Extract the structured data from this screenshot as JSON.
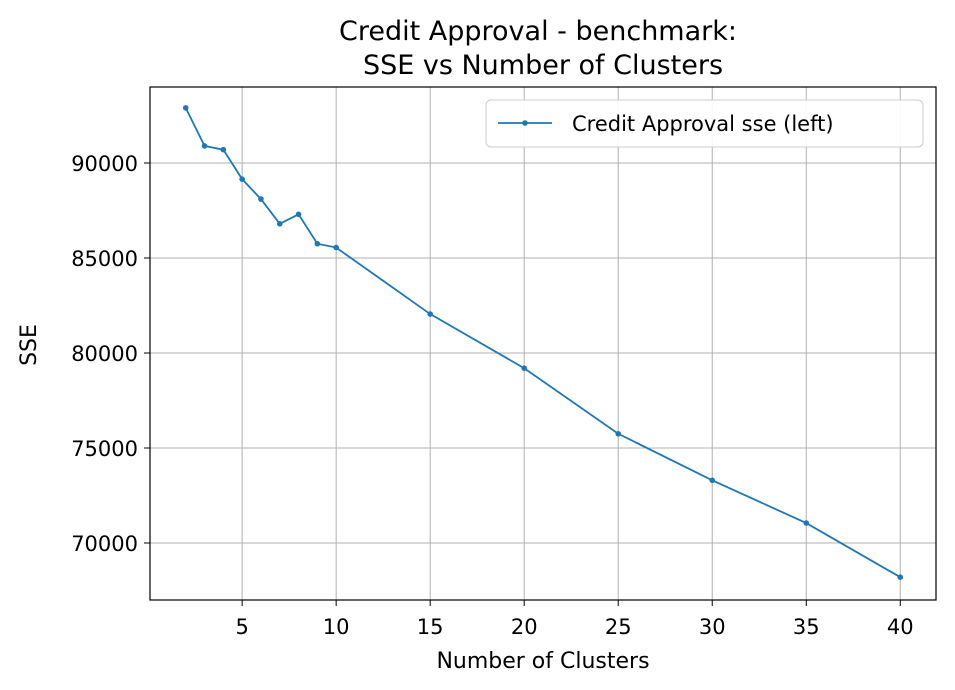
{
  "chart_data": {
    "type": "line",
    "title_line1": "Credit Approval - benchmark:",
    "title_line2": "SSE vs Number of Clusters",
    "xlabel": "Number of Clusters",
    "ylabel": "SSE",
    "xlim": [
      0.1,
      41.9
    ],
    "ylim": [
      67000,
      94000
    ],
    "xticks": [
      5,
      10,
      15,
      20,
      25,
      30,
      35,
      40
    ],
    "yticks": [
      70000,
      75000,
      80000,
      85000,
      90000
    ],
    "grid": true,
    "legend_position": "top-right",
    "series": [
      {
        "name": "Credit Approval sse (left)",
        "color": "#1f77b4",
        "x": [
          2,
          3,
          4,
          5,
          6,
          7,
          8,
          9,
          10,
          15,
          20,
          25,
          30,
          35,
          40
        ],
        "y": [
          92900,
          90900,
          90700,
          89150,
          88100,
          86800,
          87300,
          85750,
          85550,
          82050,
          79200,
          75750,
          73300,
          71050,
          68200
        ]
      }
    ]
  }
}
